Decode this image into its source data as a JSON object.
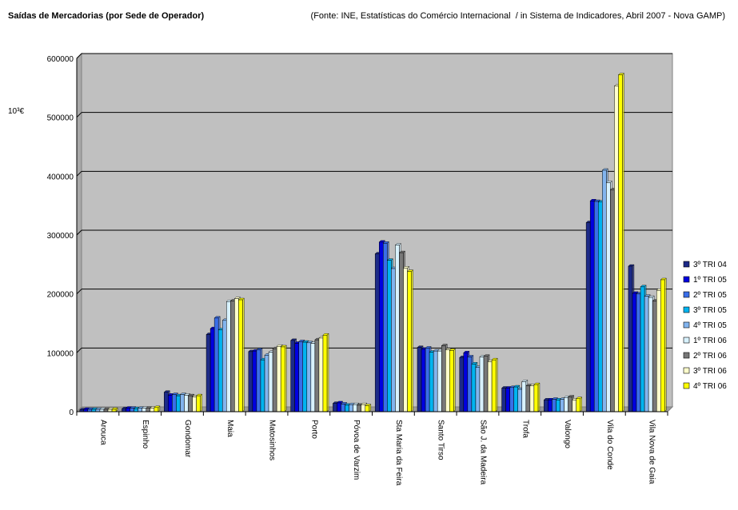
{
  "title": "Saídas de Mercadorias (por Sede de Operador)",
  "source": "(Fonte: INE, Estatísticas do Comércio Internacional  / in Sistema de Indicadores, Abril 2007 - Nova GAMP)",
  "chart_data": {
    "type": "bar",
    "title": "Saídas de Mercadorias (por Sede de Operador)",
    "ylabel": "10³€",
    "xlabel": "",
    "ylim": [
      0,
      600000
    ],
    "yticks": [
      "0",
      "100000",
      "200000",
      "300000",
      "400000",
      "500000",
      "600000"
    ],
    "grid": true,
    "legend_position": "right",
    "categories": [
      "Arouca",
      "Espinho",
      "Gondomar",
      "Maia",
      "Matosinhos",
      "Porto",
      "Póvoa de Varzim",
      "Sta Maria da Feira",
      "Santo Tirso",
      "São J. da Madeira",
      "Trofa",
      "Valongo",
      "Vila do Conde",
      "Vila Nova de Gaia"
    ],
    "series": [
      {
        "name": "3º TRI 04",
        "color": "#1c2a88",
        "values": [
          3000,
          5000,
          33000,
          131000,
          102000,
          121000,
          14000,
          268000,
          109000,
          92000,
          40000,
          20000,
          321000,
          247000
        ]
      },
      {
        "name": "1º TRI 05",
        "color": "#0000e0",
        "values": [
          4000,
          6000,
          28000,
          141000,
          103000,
          116000,
          15000,
          288000,
          106000,
          100000,
          40000,
          20000,
          358000,
          201000
        ]
      },
      {
        "name": "2º TRI 05",
        "color": "#3a6ee8",
        "values": [
          4000,
          6000,
          29000,
          159000,
          105000,
          119000,
          13000,
          286000,
          108000,
          93000,
          41000,
          21000,
          357000,
          200000
        ]
      },
      {
        "name": "3º TRI 05",
        "color": "#00b4f0",
        "values": [
          4000,
          5000,
          27000,
          139000,
          88000,
          118000,
          11000,
          257000,
          101000,
          81000,
          42000,
          20000,
          356000,
          212000
        ]
      },
      {
        "name": "4º TRI 05",
        "color": "#82b4ee",
        "values": [
          4000,
          6000,
          29000,
          155000,
          96000,
          117000,
          12000,
          243000,
          103000,
          75000,
          38000,
          21000,
          410000,
          196000
        ]
      },
      {
        "name": "1º TRI 06",
        "color": "#d8f2ff",
        "values": [
          4000,
          6000,
          28000,
          187000,
          101000,
          116000,
          12000,
          283000,
          103000,
          93000,
          51000,
          24000,
          389000,
          194000
        ]
      },
      {
        "name": "2º TRI 06",
        "color": "#787878",
        "values": [
          4000,
          6000,
          27000,
          188000,
          107000,
          122000,
          11000,
          270000,
          112000,
          94000,
          44000,
          25000,
          377000,
          188000
        ]
      },
      {
        "name": "3º TRI 06",
        "color": "#ffffcc",
        "values": [
          4000,
          6000,
          25000,
          192000,
          111000,
          125000,
          12000,
          244000,
          105000,
          85000,
          44000,
          20000,
          553000,
          206000
        ]
      },
      {
        "name": "4º TRI 06",
        "color": "#ffff00",
        "values": [
          4000,
          7000,
          27000,
          190000,
          110000,
          130000,
          10000,
          238000,
          104000,
          88000,
          46000,
          22000,
          572000,
          224000
        ]
      }
    ]
  }
}
